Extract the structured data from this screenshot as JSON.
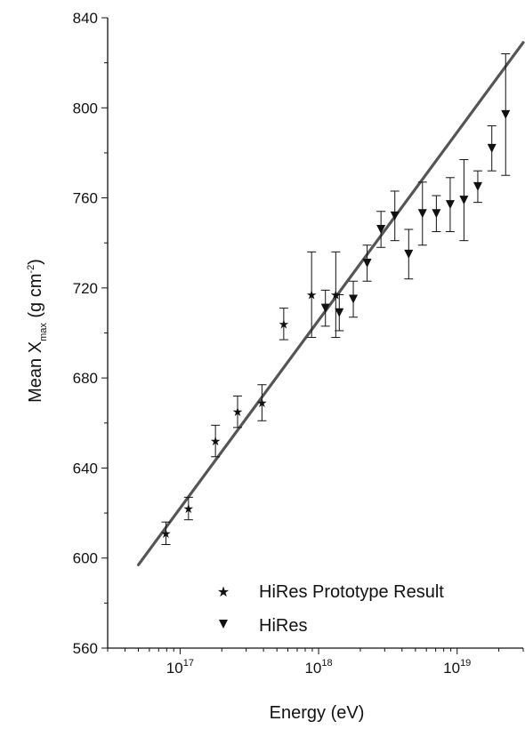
{
  "chart_data": {
    "type": "scatter",
    "xlabel": "Energy (eV)",
    "ylabel": {
      "main": "Mean X",
      "sub": "max",
      "unit": " (g cm",
      "exp": "-2",
      "close": ")"
    },
    "x_scale": "log",
    "xlim": [
      3e+16,
      3e+19
    ],
    "ylim": [
      560,
      840
    ],
    "yticks": [
      560,
      600,
      640,
      680,
      720,
      760,
      800,
      840
    ],
    "xticks": [
      {
        "value": 1e+17,
        "base": "10",
        "exp": "17"
      },
      {
        "value": 1e+18,
        "base": "10",
        "exp": "18"
      },
      {
        "value": 1e+19,
        "base": "10",
        "exp": "19"
      }
    ],
    "grid": false,
    "legend_position": "bottom-right",
    "series": [
      {
        "name": "HiRes Prototype Result",
        "marker": "star",
        "points": [
          {
            "x": 7.9e+16,
            "y": 611,
            "err": 5
          },
          {
            "x": 1.15e+17,
            "y": 622,
            "err": 5
          },
          {
            "x": 1.8e+17,
            "y": 652,
            "err": 7
          },
          {
            "x": 2.6e+17,
            "y": 665,
            "err": 7
          },
          {
            "x": 3.9e+17,
            "y": 669,
            "err": 8
          },
          {
            "x": 5.6e+17,
            "y": 704,
            "err": 7
          },
          {
            "x": 8.9e+17,
            "y": 717,
            "err": 19
          },
          {
            "x": 1.33e+18,
            "y": 717,
            "err": 19
          }
        ]
      },
      {
        "name": "HiRes",
        "marker": "triangle-down",
        "points": [
          {
            "x": 1.12e+18,
            "y": 711,
            "err": 8
          },
          {
            "x": 1.41e+18,
            "y": 709,
            "err": 8
          },
          {
            "x": 1.78e+18,
            "y": 715,
            "err": 8
          },
          {
            "x": 2.24e+18,
            "y": 731,
            "err": 8
          },
          {
            "x": 2.82e+18,
            "y": 746,
            "err": 8
          },
          {
            "x": 3.55e+18,
            "y": 752,
            "err": 11
          },
          {
            "x": 4.47e+18,
            "y": 735,
            "err": 11
          },
          {
            "x": 5.62e+18,
            "y": 753,
            "err": 14
          },
          {
            "x": 7.08e+18,
            "y": 753,
            "err": 8
          },
          {
            "x": 8.91e+18,
            "y": 757,
            "err": 12
          },
          {
            "x": 1.12e+19,
            "y": 759,
            "err": 18
          },
          {
            "x": 1.41e+19,
            "y": 765,
            "err": 7
          },
          {
            "x": 1.78e+19,
            "y": 782,
            "err": 10
          },
          {
            "x": 2.24e+19,
            "y": 797,
            "err": 27
          }
        ]
      }
    ],
    "fit_line": {
      "x": [
        5e+16,
        3e+19
      ],
      "y": [
        597,
        829
      ]
    }
  }
}
